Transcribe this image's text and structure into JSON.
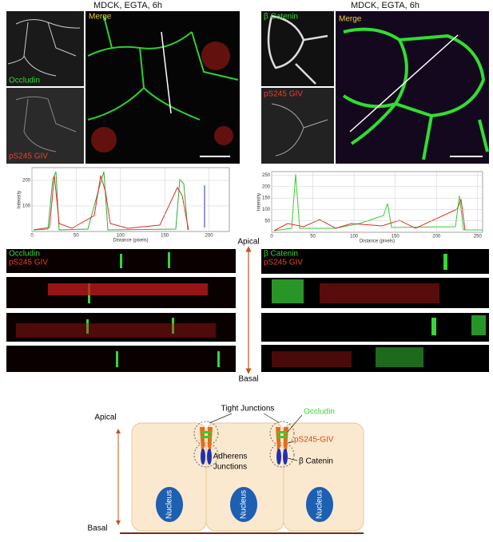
{
  "panels": [
    {
      "title": "MDCK, EGTA, 6h",
      "channels": [
        "Occludin",
        "pS245 GIV"
      ],
      "merge": "Merge",
      "plot": {
        "ylabel": "Intensity",
        "xlabel": "Distance (pixels)",
        "xlim": [
          0,
          223
        ],
        "ylim": [
          0,
          250
        ],
        "xticks": [
          0,
          50,
          100,
          150,
          200
        ],
        "yticks": [
          100,
          200
        ]
      },
      "zstack": [
        "Occludin",
        "pS245 GIV"
      ]
    },
    {
      "title": "MDCK, EGTA, 6h",
      "channels": [
        "β Catenin",
        "pS245 GIV"
      ],
      "merge": "Merge",
      "plot": {
        "ylabel": "Intensity",
        "xlabel": "Distance (pixels)",
        "xlim": [
          0,
          256
        ],
        "ylim": [
          0,
          266
        ],
        "xticks": [
          0,
          50,
          100,
          150,
          200,
          250
        ],
        "yticks": [
          50,
          100,
          150,
          200,
          250
        ]
      },
      "zstack": [
        "β Catenin",
        "pS245 GIV"
      ]
    }
  ],
  "axis": {
    "top": "Apical",
    "bottom": "Basal"
  },
  "diagram": {
    "apical": "Apical",
    "basal": "Basal",
    "tight": "Tight Junctions",
    "occludin": "Occludin",
    "giv": "pS245-GIV",
    "adherens": [
      "Adherens",
      "Junctions"
    ],
    "catenin": "β Catenin",
    "nucleus": [
      "Nucleus",
      "Nucleus",
      "Nucleus"
    ]
  }
}
